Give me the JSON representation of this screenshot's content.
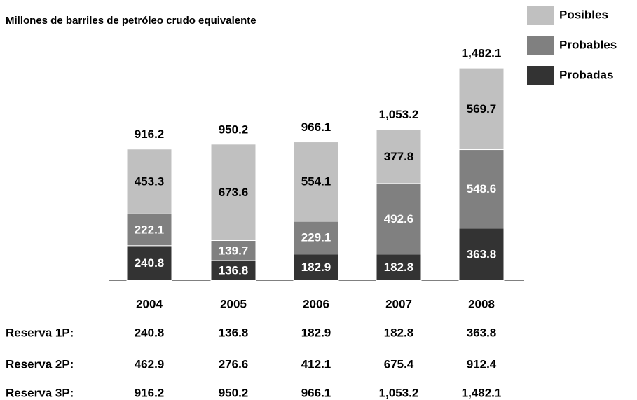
{
  "chart_data": {
    "type": "stacked_bar",
    "title": "Millones de barriles de petróleo crudo equivalente",
    "categories": [
      "2004",
      "2005",
      "2006",
      "2007",
      "2008"
    ],
    "series": [
      {
        "name": "Probadas",
        "color": "#333333",
        "label_color": "#ffffff",
        "values": [
          240.8,
          136.8,
          182.9,
          182.8,
          363.8
        ]
      },
      {
        "name": "Probables",
        "color": "#808080",
        "label_color": "#ffffff",
        "values": [
          222.1,
          139.7,
          229.1,
          492.6,
          548.6
        ]
      },
      {
        "name": "Posibles",
        "color": "#c0c0c0",
        "label_color": "#000000",
        "values": [
          453.3,
          673.6,
          554.1,
          377.8,
          569.7
        ]
      }
    ],
    "totals": {
      "values": [
        916.2,
        950.2,
        966.1,
        1053.2,
        1482.1
      ],
      "value_labels": [
        "916.2",
        "950.2",
        "966.1",
        "1,053.2",
        "1,482.1"
      ]
    },
    "ylim": [
      0,
      1600
    ],
    "legend": "top-right",
    "table": {
      "rows": [
        {
          "label": "Reserva 1P:",
          "values": [
            240.8,
            136.8,
            182.9,
            182.8,
            363.8
          ]
        },
        {
          "label": "Reserva 2P:",
          "values": [
            462.9,
            276.6,
            412.1,
            675.4,
            912.4
          ]
        },
        {
          "label": "Reserva 3P:",
          "values": [
            916.2,
            950.2,
            966.1,
            1053.2,
            1482.1
          ],
          "value_labels": [
            "916.2",
            "950.2",
            "966.1",
            "1,053.2",
            "1,482.1"
          ]
        }
      ]
    }
  }
}
